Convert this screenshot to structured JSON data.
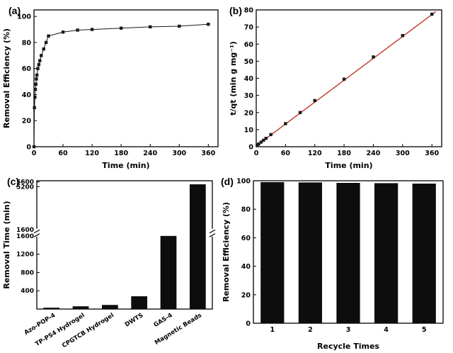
{
  "figure": {
    "background": "#ffffff",
    "marker_color": "#1a1a1a",
    "bar_color": "#0d0d0d",
    "fit_line_color": "#c0392b",
    "axis_color": "#000000"
  },
  "chart_data": [
    {
      "panel_label": "(a)",
      "type": "scatter",
      "xlabel": "Time (min)",
      "ylabel": "Removal Efficiency (%)",
      "xlim": [
        0,
        380
      ],
      "ylim": [
        0,
        105
      ],
      "xticks": [
        0,
        60,
        120,
        180,
        240,
        300,
        360
      ],
      "yticks": [
        0,
        20,
        40,
        60,
        80,
        100
      ],
      "connect": true,
      "points": [
        [
          0,
          0
        ],
        [
          1,
          30
        ],
        [
          2,
          38
        ],
        [
          3,
          44
        ],
        [
          4,
          48
        ],
        [
          5,
          52
        ],
        [
          6,
          55
        ],
        [
          8,
          60
        ],
        [
          10,
          63
        ],
        [
          12,
          66
        ],
        [
          15,
          70
        ],
        [
          20,
          75
        ],
        [
          25,
          80
        ],
        [
          30,
          85
        ],
        [
          60,
          88
        ],
        [
          90,
          89.5
        ],
        [
          120,
          90
        ],
        [
          180,
          91
        ],
        [
          240,
          92
        ],
        [
          300,
          92.5
        ],
        [
          360,
          94
        ]
      ]
    },
    {
      "panel_label": "(b)",
      "type": "scatter",
      "xlabel": "Time (min)",
      "ylabel": "t/qt (min g mg⁻¹)",
      "xlim": [
        0,
        380
      ],
      "ylim": [
        0,
        80
      ],
      "xticks": [
        0,
        60,
        120,
        180,
        240,
        300,
        360
      ],
      "yticks": [
        0,
        10,
        20,
        30,
        40,
        50,
        60,
        70,
        80
      ],
      "connect": false,
      "points": [
        [
          2,
          0.9
        ],
        [
          5,
          1.6
        ],
        [
          10,
          2.7
        ],
        [
          15,
          3.8
        ],
        [
          20,
          4.9
        ],
        [
          30,
          7.1
        ],
        [
          60,
          13.5
        ],
        [
          90,
          20
        ],
        [
          120,
          27
        ],
        [
          180,
          39.5
        ],
        [
          240,
          52.5
        ],
        [
          300,
          65
        ],
        [
          360,
          77.5
        ]
      ],
      "fit_line": {
        "x1": 0,
        "y1": 0.5,
        "x2": 368,
        "y2": 79
      }
    },
    {
      "panel_label": "(c)",
      "type": "bar-broken-axis",
      "ylabel": "Removal Time (min)",
      "categories": [
        "Azo-POP-4",
        "TP-PS4 Hydrogel",
        "CPGTCB Hydrogel",
        "DWTS",
        "GAS-4",
        "Magnetic Beads"
      ],
      "values": [
        30,
        60,
        90,
        280,
        1600,
        5400
      ],
      "lower_ylim": [
        0,
        1600
      ],
      "lower_yticks": [
        400,
        800,
        1200,
        1600
      ],
      "upper_ylim": [
        1600,
        5700
      ],
      "upper_yticks": [
        1600,
        5200,
        5600
      ]
    },
    {
      "panel_label": "(d)",
      "type": "bar",
      "xlabel": "Recycle Times",
      "ylabel": "Removal Efficiency (%)",
      "categories": [
        "1",
        "2",
        "3",
        "4",
        "5"
      ],
      "values": [
        99,
        98.8,
        98.5,
        98.3,
        98
      ],
      "ylim": [
        0,
        100
      ],
      "yticks": [
        0,
        20,
        40,
        60,
        80,
        100
      ]
    }
  ]
}
